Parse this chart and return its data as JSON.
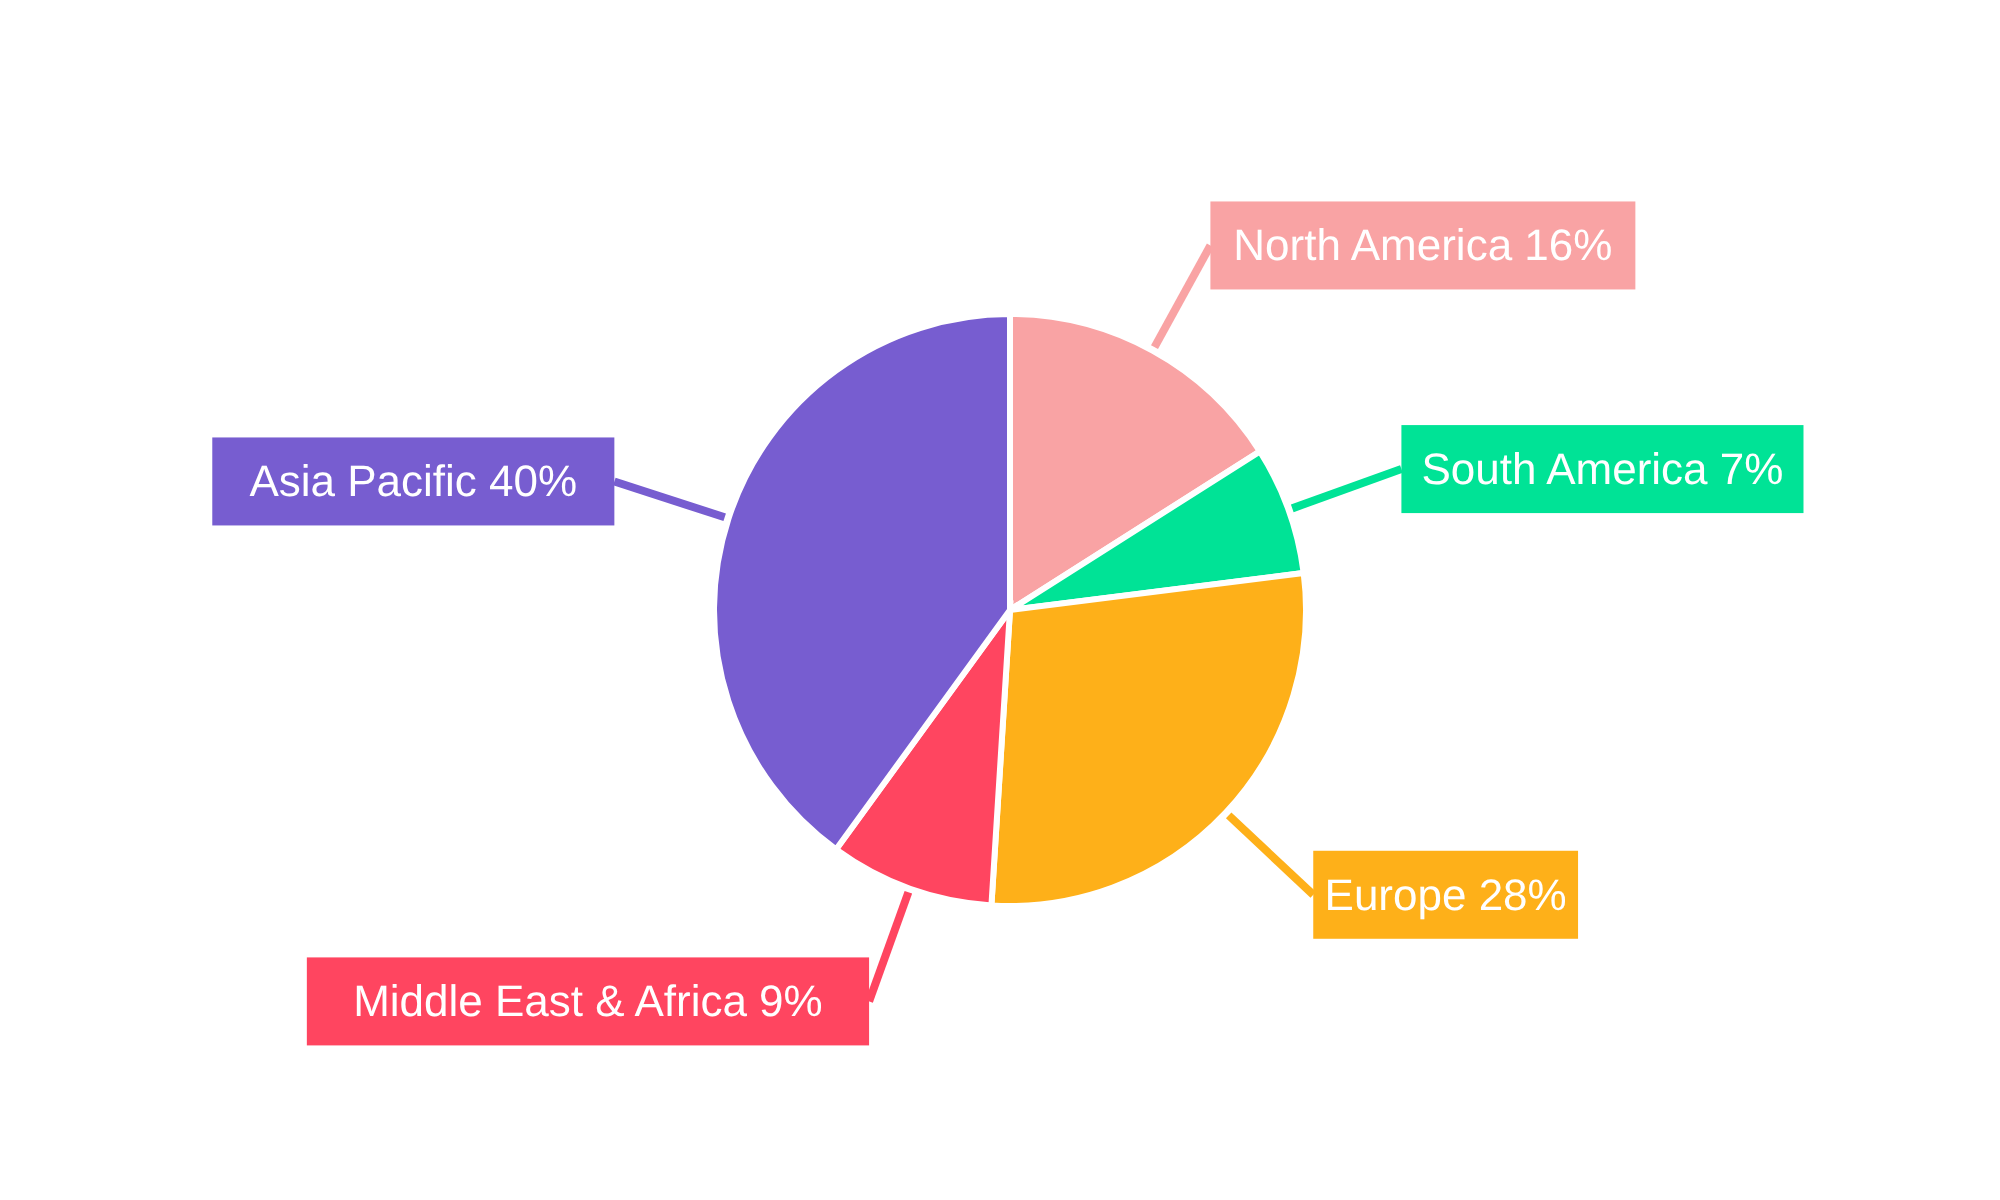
{
  "chart_data": {
    "type": "pie",
    "categories": [
      "North America",
      "South America",
      "Europe",
      "Middle East & Africa",
      "Asia Pacific"
    ],
    "values": [
      16,
      7,
      28,
      9,
      40
    ],
    "value_labels": [
      "16%",
      "7%",
      "28%",
      "9%",
      "40%"
    ],
    "colors": [
      "#f9a3a4",
      "#00e396",
      "#feb019",
      "#ff4560",
      "#775dd0"
    ],
    "legend": false
  }
}
